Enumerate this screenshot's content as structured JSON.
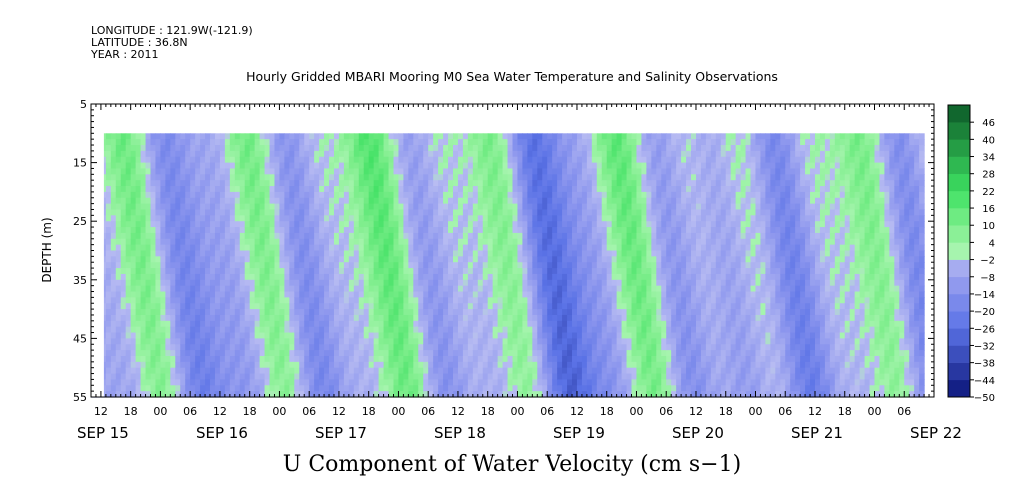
{
  "header": {
    "longitude": "LONGITUDE : 121.9W(-121.9)",
    "latitude": "LATITUDE : 36.8N",
    "year": "YEAR : 2011"
  },
  "chart_data": {
    "type": "heatmap",
    "title": "Hourly Gridded MBARI Mooring M0 Sea Water Temperature and Salinity Observations",
    "xlabel": "U Component of Water Velocity (cm s−1)",
    "ylabel": "DEPTH (m)",
    "ylim": [
      5,
      55
    ],
    "y_ticks": [
      5,
      15,
      25,
      35,
      45,
      55
    ],
    "data_depth_range": [
      10,
      55
    ],
    "x_start": "SEP 15 10:00",
    "x_end": "SEP 22 10:00",
    "x_hour_ticks": [
      "12",
      "18",
      "00",
      "06",
      "12",
      "18",
      "00",
      "06",
      "12",
      "18",
      "00",
      "06",
      "12",
      "18",
      "00",
      "06",
      "12",
      "18",
      "00",
      "06",
      "12",
      "18",
      "00",
      "06",
      "12",
      "18",
      "00",
      "06"
    ],
    "x_day_labels": [
      "SEP 15",
      "SEP 16",
      "SEP 17",
      "SEP 18",
      "SEP 19",
      "SEP 20",
      "SEP 21",
      "SEP 22"
    ],
    "colorbar_levels": [
      46,
      40,
      34,
      28,
      22,
      16,
      10,
      4,
      -2,
      -8,
      -14,
      -20,
      -26,
      -32,
      -38,
      -44,
      -50
    ],
    "colorbar_range": [
      -50,
      52
    ],
    "colors": {
      "negative_light": "#b8bcf2",
      "negative_mid": "#8c96ee",
      "negative_strong": "#5a72e6",
      "positive_light": "#a6f4ae",
      "positive_mid": "#7eee8c",
      "positive_strong": "#3ee062",
      "darkest_negative": "#0a1478",
      "darkest_positive": "#0c5a28"
    },
    "pattern_note": "alternating bands of negative (blue) and positive (green) U velocity with time; strongest negative around SEP 19 00-06 and SEP 20 18 at depth"
  }
}
